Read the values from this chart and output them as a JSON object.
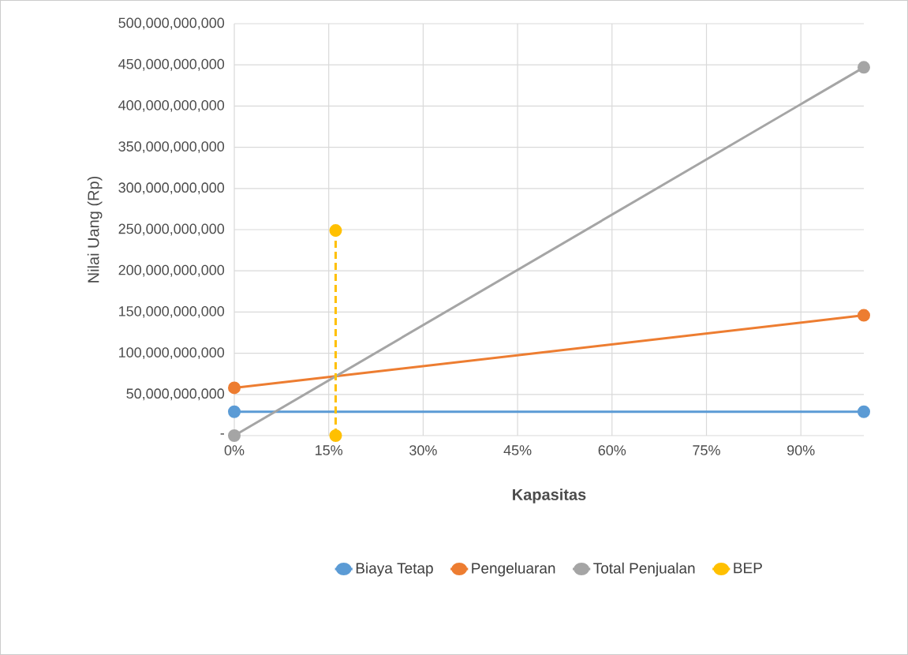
{
  "chart_data": {
    "type": "line",
    "xlabel": "Kapasitas",
    "ylabel": "Nilai Uang (Rp)",
    "xlim": [
      0,
      100
    ],
    "xticks": [
      {
        "value": 0,
        "label": "0%"
      },
      {
        "value": 15,
        "label": "15%"
      },
      {
        "value": 30,
        "label": "30%"
      },
      {
        "value": 45,
        "label": "45%"
      },
      {
        "value": 60,
        "label": "60%"
      },
      {
        "value": 75,
        "label": "75%"
      },
      {
        "value": 90,
        "label": "90%"
      }
    ],
    "ylim": [
      0,
      500000000000
    ],
    "yticks": [
      {
        "value": 0,
        "label": "-"
      },
      {
        "value": 50000000000,
        "label": "50,000,000,000"
      },
      {
        "value": 100000000000,
        "label": "100,000,000,000"
      },
      {
        "value": 150000000000,
        "label": "150,000,000,000"
      },
      {
        "value": 200000000000,
        "label": "200,000,000,000"
      },
      {
        "value": 250000000000,
        "label": "250,000,000,000"
      },
      {
        "value": 300000000000,
        "label": "300,000,000,000"
      },
      {
        "value": 350000000000,
        "label": "350,000,000,000"
      },
      {
        "value": 400000000000,
        "label": "400,000,000,000"
      },
      {
        "value": 450000000000,
        "label": "450,000,000,000"
      },
      {
        "value": 500000000000,
        "label": "500,000,000,000"
      }
    ],
    "x": [
      0,
      100
    ],
    "grid": true,
    "legend": "bottom",
    "marker": "circle",
    "line_style": "solid",
    "series": [
      {
        "name": "Biaya Tetap",
        "color": "#5b9bd5",
        "values": [
          29000000000,
          29000000000
        ]
      },
      {
        "name": "Pengeluaran",
        "color": "#ed7d31",
        "values": [
          58000000000,
          146000000000
        ]
      },
      {
        "name": "Total Penjualan",
        "color": "#a5a5a5",
        "values": [
          0,
          447000000000
        ]
      },
      {
        "name": "BEP",
        "color": "#ffc000",
        "x": [
          16.1,
          16.1
        ],
        "values": [
          0,
          249000000000
        ],
        "line_style": "dashed"
      }
    ]
  }
}
